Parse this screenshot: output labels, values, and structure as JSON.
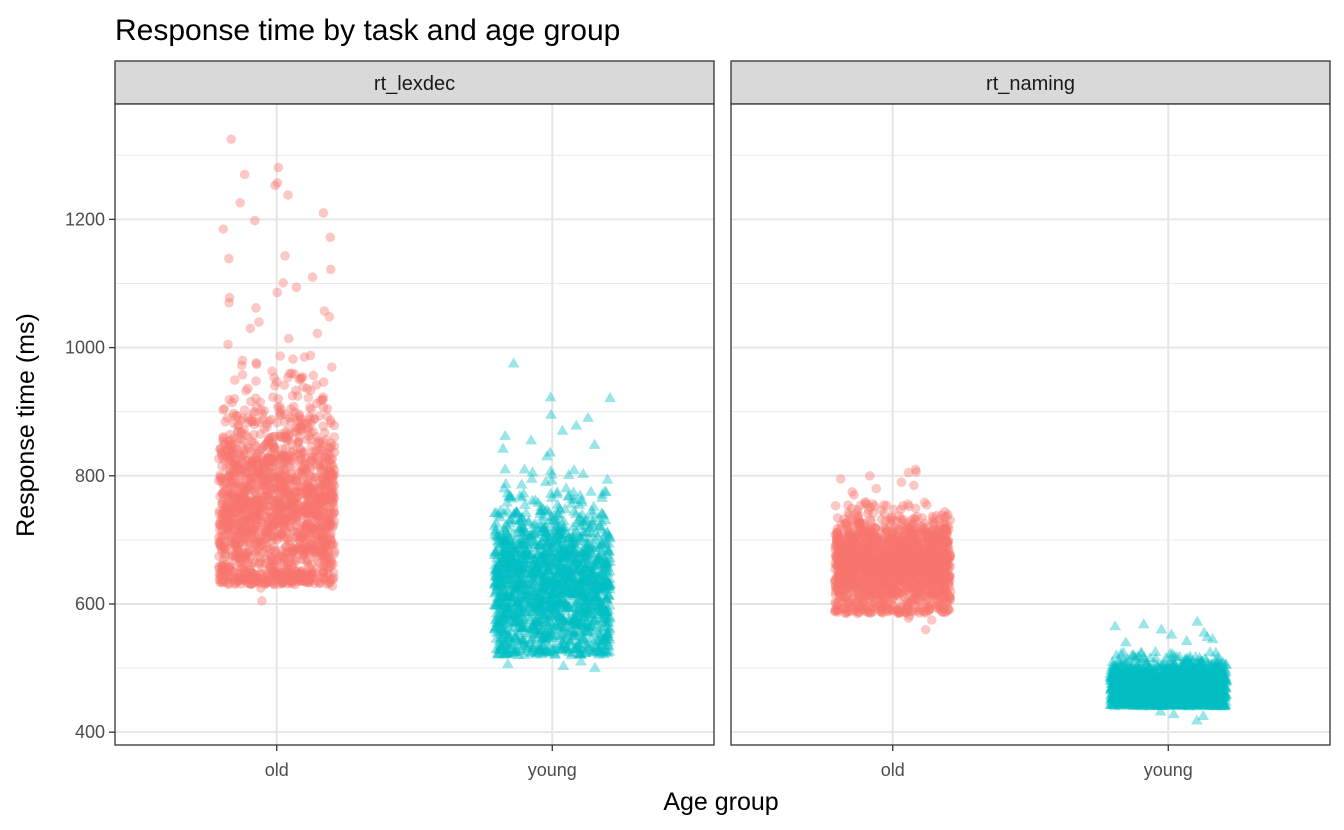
{
  "chart_data": {
    "type": "scatter",
    "title": "Response time by task and age group",
    "xlabel": "Age group",
    "ylabel": "Response time (ms)",
    "categories": [
      "old",
      "young"
    ],
    "y_ticks": [
      400,
      600,
      800,
      1000,
      1200
    ],
    "ylim": [
      380,
      1380
    ],
    "grid": true,
    "legend": "none",
    "colors": {
      "old": "#F8766D",
      "young": "#00BFC4"
    },
    "marker_shapes": {
      "old": "circle",
      "young": "triangle"
    },
    "panels": [
      {
        "strip": "rt_lexdec",
        "groups": [
          {
            "category": "old",
            "n": 2284,
            "typical_min": 630,
            "typical_max": 990,
            "dense_center": 750,
            "outliers": [
              1325,
              1281,
              1270,
              1257,
              1253,
              1238,
              1226,
              1210,
              1198,
              1185,
              1172,
              1143,
              1139,
              1122,
              1110,
              1101,
              1094,
              1086,
              1078,
              1070,
              1062,
              1057,
              1048,
              1040,
              1030,
              1022,
              1014,
              1005,
              605,
              625,
              628,
              632,
              635
            ]
          },
          {
            "category": "young",
            "n": 2284,
            "typical_min": 520,
            "typical_max": 810,
            "dense_center": 630,
            "outliers": [
              975,
              922,
              921,
              895,
              890,
              878,
              870,
              862,
              855,
              848,
              842,
              836,
              830,
              500,
              503,
              506,
              510
            ]
          }
        ]
      },
      {
        "strip": "rt_naming",
        "groups": [
          {
            "category": "old",
            "n": 2284,
            "typical_min": 585,
            "typical_max": 760,
            "dense_center": 660,
            "outliers": [
              810,
              806,
              805,
              800,
              795,
              790,
              785,
              780,
              775,
              770,
              560,
              575,
              578,
              582
            ]
          },
          {
            "category": "young",
            "n": 2284,
            "typical_min": 440,
            "typical_max": 525,
            "dense_center": 472,
            "outliers": [
              572,
              568,
              565,
              560,
              555,
              552,
              548,
              545,
              542,
              540,
              418,
              425,
              428,
              432
            ]
          }
        ]
      }
    ]
  }
}
